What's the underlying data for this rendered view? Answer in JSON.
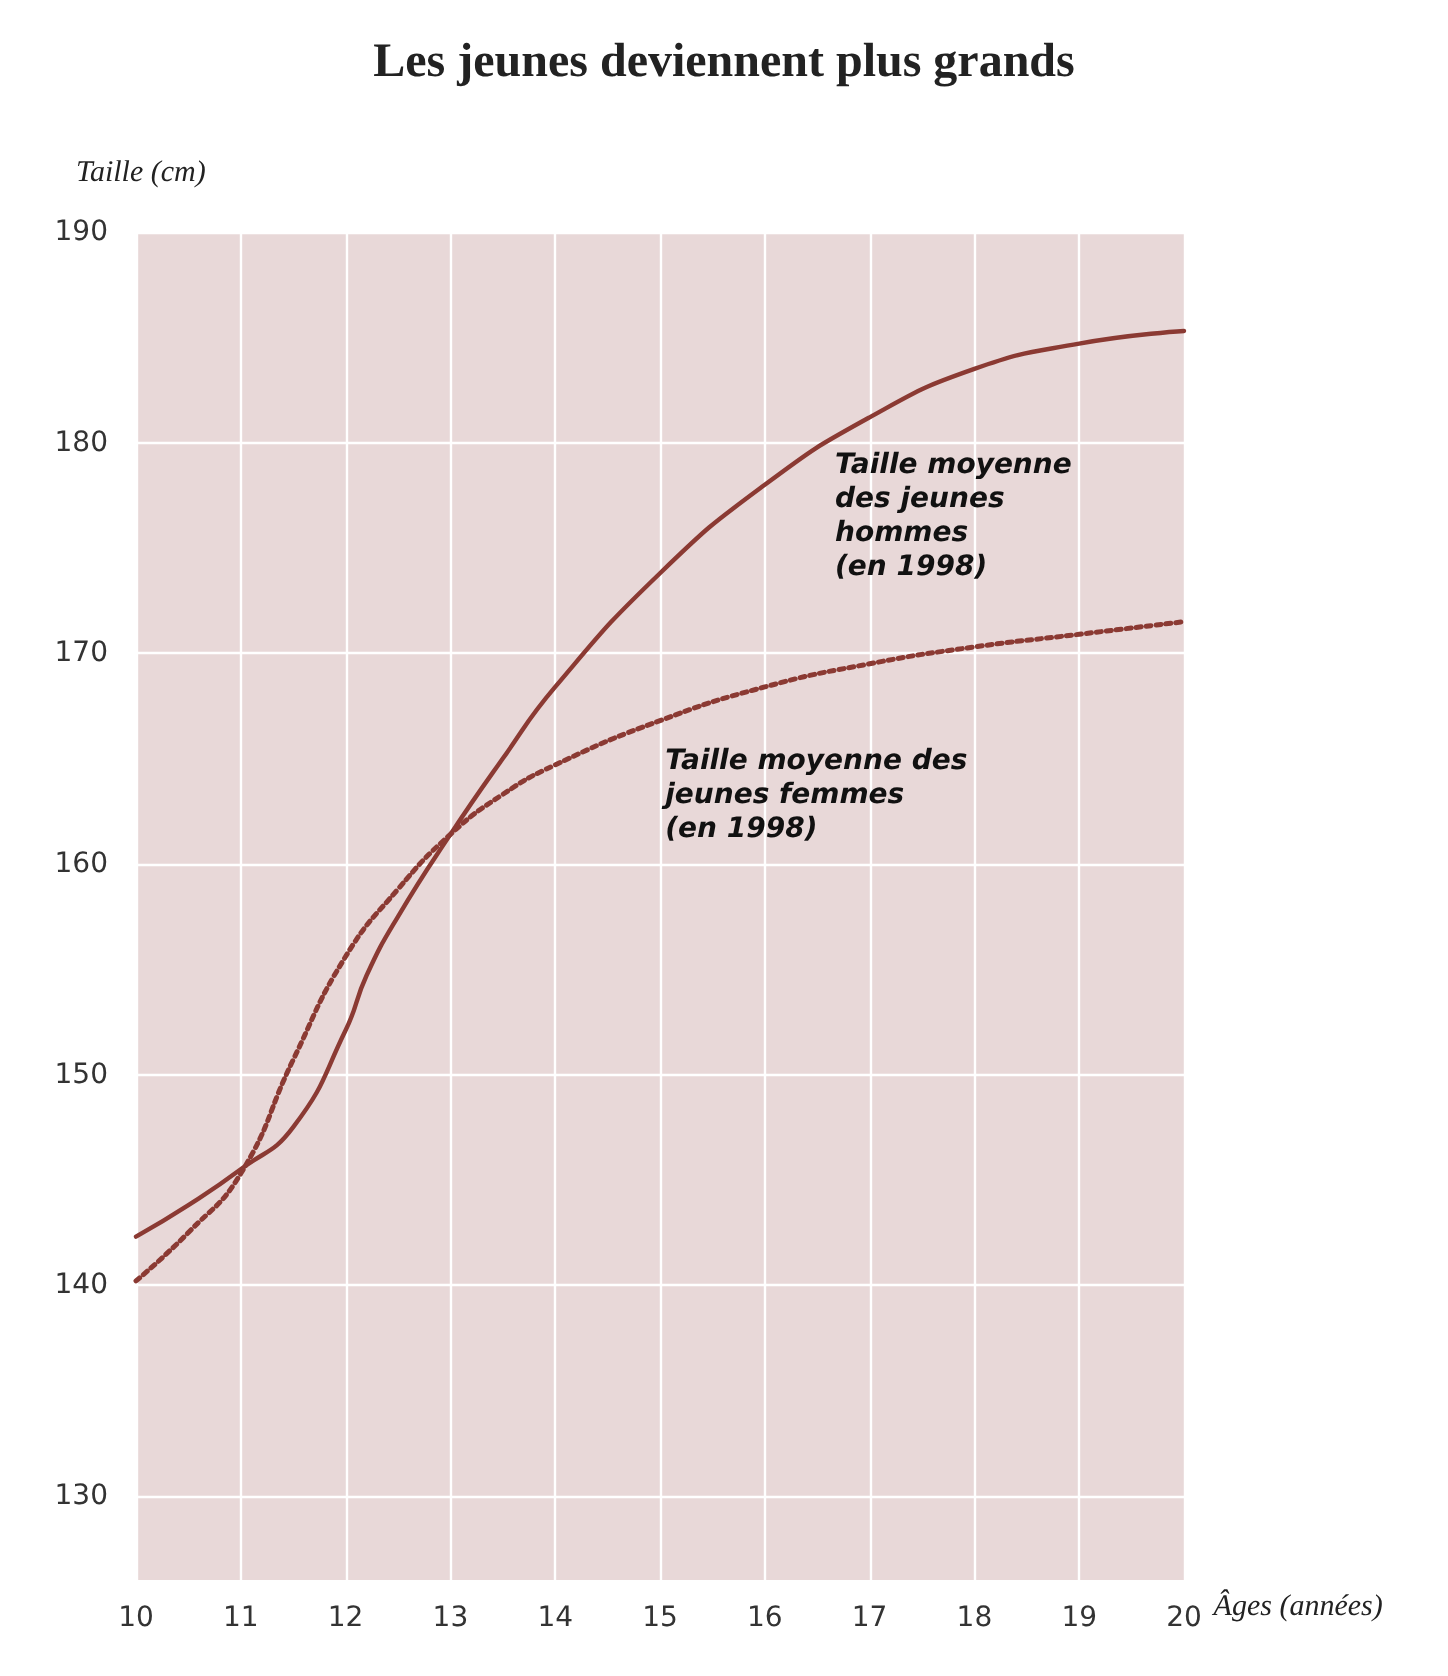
{
  "chart_data": {
    "type": "line",
    "title": "Les jeunes deviennent plus grands",
    "ylabel": "Taille (cm)",
    "xlabel": "Âges (années)",
    "xlim": [
      10,
      20
    ],
    "xticks": [
      10,
      11,
      12,
      13,
      14,
      15,
      16,
      17,
      18,
      19,
      20
    ],
    "ylim": [
      126,
      190
    ],
    "yticks": [
      130,
      140,
      150,
      160,
      170,
      180,
      190
    ],
    "grid": true,
    "marker": "none",
    "series": [
      {
        "color": "#8b3a33",
        "line_style": "solid",
        "x": [
          10,
          10.5,
          11,
          11.5,
          12,
          12.2,
          12.5,
          13,
          13.5,
          14,
          15,
          16,
          17,
          18,
          19,
          20
        ],
        "values": [
          142.3,
          143.8,
          145.5,
          147.5,
          152.1,
          154.7,
          157.5,
          161.4,
          165,
          168.4,
          173.8,
          178,
          181.2,
          183.5,
          184.7,
          185.3
        ]
      },
      {
        "color": "#8b3a33",
        "line_style": "dotted",
        "x": [
          10,
          10.5,
          11,
          11.5,
          12,
          12.5,
          13,
          13.5,
          14,
          15,
          16,
          17,
          18,
          19,
          20
        ],
        "values": [
          140.2,
          142.5,
          145.3,
          150.7,
          155.6,
          158.8,
          161.4,
          163.3,
          164.7,
          166.8,
          168.4,
          169.5,
          170.3,
          170.9,
          171.5
        ]
      }
    ],
    "annotations": [
      "Taille moyenne\ndes jeunes\nhommes\n(en 1998)",
      "Taille moyenne des\njeunes femmes\n(en 1998)"
    ]
  }
}
